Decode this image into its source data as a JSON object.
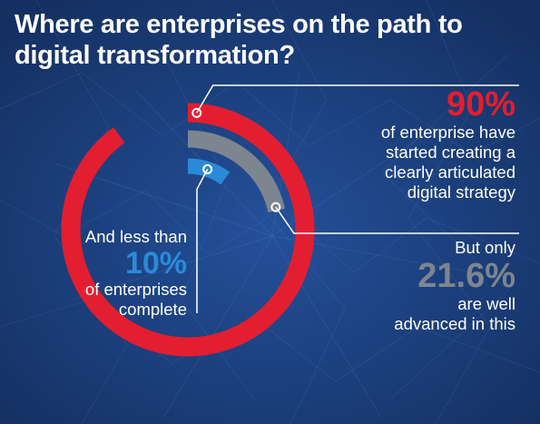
{
  "title": {
    "line1": "Where are enterprises on the path to",
    "line2": "digital transformation?"
  },
  "colors": {
    "red": "#e31e30",
    "gray": "#7d8590",
    "blue": "#2a8ad8",
    "background": "#1d3f7a",
    "leader": "#ffffff"
  },
  "chart_data": {
    "type": "radial_bar",
    "unit": "%",
    "series": [
      {
        "key": "started",
        "value": 90,
        "label": "90%",
        "text": [
          "of enterprise have",
          "started creating a",
          "clearly articulated",
          "digital strategy"
        ],
        "color": "#e31e30"
      },
      {
        "key": "advanced",
        "value": 21.6,
        "label": "21.6%",
        "intro": "But only",
        "text": [
          "are well",
          "advanced in this"
        ],
        "color": "#7d8590"
      },
      {
        "key": "complete",
        "value": 10,
        "label": "10%",
        "intro": "And less than",
        "text": [
          "of enterprises",
          "complete"
        ],
        "color": "#2a8ad8"
      }
    ]
  }
}
